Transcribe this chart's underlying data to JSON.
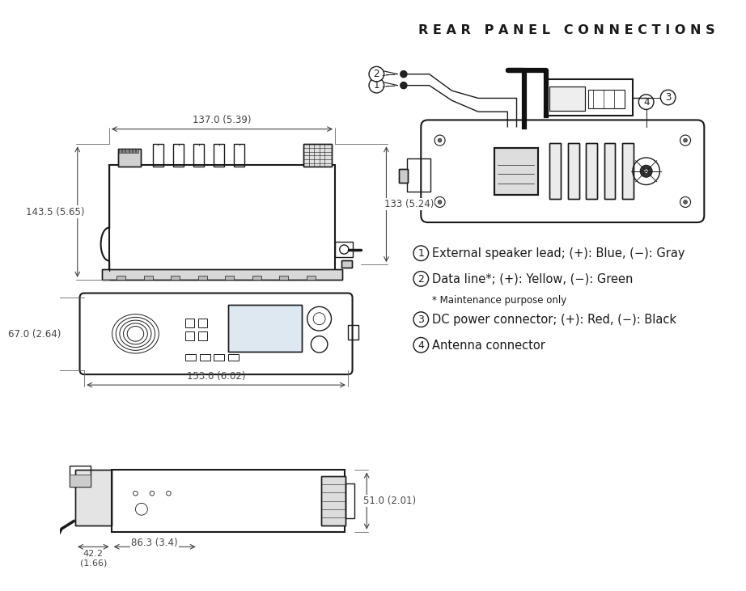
{
  "title": "R E A R   P A N E L   C O N N E C T I O N S",
  "bg_color": "#ffffff",
  "line_color": "#1a1a1a",
  "dim_color": "#444444",
  "text_color": "#1a1a1a",
  "annotations": [
    {
      "num": "1",
      "text": "External speaker lead; (+): Blue, (−): Gray"
    },
    {
      "num": "2",
      "text": "Data line*; (+): Yellow, (−): Green"
    },
    {
      "num": null,
      "text": "* Maintenance purpose only"
    },
    {
      "num": "3",
      "text": "DC power connector; (+): Red, (−): Black"
    },
    {
      "num": "4",
      "text": "Antenna connector"
    }
  ],
  "dims": {
    "top_width": "137.0 (5.39)",
    "side_height": "143.5 (5.65)",
    "right_height": "133 (5.24)",
    "front_width": "153.0 (6.02)",
    "front_height": "67.0 (2.64)",
    "bottom_width1": "42.2\n(1.66)",
    "bottom_width2": "86.3 (3.4)",
    "bottom_height": "51.0 (2.01)"
  }
}
